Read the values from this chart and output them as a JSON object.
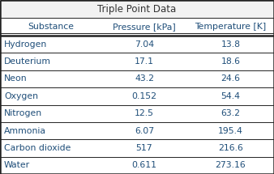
{
  "title": "Triple Point Data",
  "columns": [
    "Substance",
    "Pressure [kPa]",
    "Temperature [K]"
  ],
  "rows": [
    [
      "Hydrogen",
      "7.04",
      "13.8"
    ],
    [
      "Deuterium",
      "17.1",
      "18.6"
    ],
    [
      "Neon",
      "43.2",
      "24.6"
    ],
    [
      "Oxygen",
      "0.152",
      "54.4"
    ],
    [
      "Nitrogen",
      "12.5",
      "63.2"
    ],
    [
      "Ammonia",
      "6.07",
      "195.4"
    ],
    [
      "Carbon dioxide",
      "517",
      "216.6"
    ],
    [
      "Water",
      "0.611",
      "273.16"
    ]
  ],
  "title_bg": "#f2f2f2",
  "header_bg": "#ffffff",
  "row_bg": "#ffffff",
  "fig_bg": "#f2f2f2",
  "text_color": "#1f4e79",
  "title_color": "#333333",
  "border_color": "#222222",
  "title_fontsize": 8.5,
  "header_fontsize": 7.8,
  "data_fontsize": 7.8,
  "figsize": [
    3.38,
    2.15
  ],
  "dpi": 100
}
